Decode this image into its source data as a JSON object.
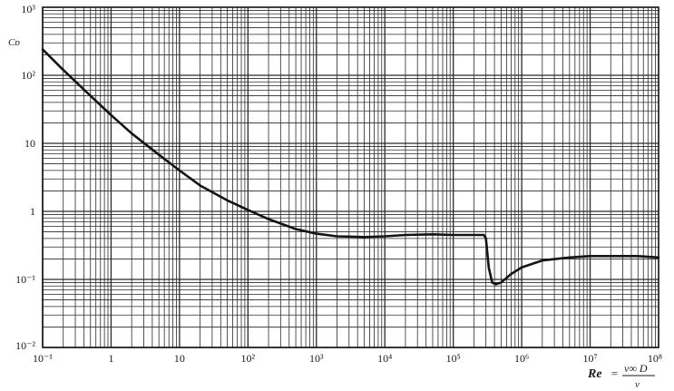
{
  "chart_data": {
    "type": "line",
    "title": "",
    "xscale": "log",
    "yscale": "log",
    "xlim": [
      0.1,
      100000000
    ],
    "ylim": [
      0.01,
      1000
    ],
    "grid": true,
    "ylabel": "Cᴅ",
    "xlabel": {
      "lhs": "Re",
      "eq": "=",
      "num": "v∞ D",
      "den": "ν"
    },
    "x_ticks": [
      {
        "value": 0.1,
        "label": "10⁻¹"
      },
      {
        "value": 1,
        "label": "1"
      },
      {
        "value": 10,
        "label": "10"
      },
      {
        "value": 100,
        "label": "10²"
      },
      {
        "value": 1000,
        "label": "10³"
      },
      {
        "value": 10000,
        "label": "10⁴"
      },
      {
        "value": 100000,
        "label": "10⁵"
      },
      {
        "value": 1000000,
        "label": "10⁶"
      },
      {
        "value": 10000000,
        "label": "10⁷"
      },
      {
        "value": 100000000,
        "label": "10⁸"
      }
    ],
    "y_ticks": [
      {
        "value": 0.01,
        "label": "10⁻²"
      },
      {
        "value": 0.1,
        "label": "10⁻¹"
      },
      {
        "value": 1,
        "label": "1"
      },
      {
        "value": 10,
        "label": "10"
      },
      {
        "value": 100,
        "label": "10²"
      },
      {
        "value": 1000,
        "label": "10³"
      }
    ],
    "series": [
      {
        "x": [
          0.1,
          0.2,
          0.5,
          1,
          2,
          5,
          10,
          20,
          50,
          100,
          200,
          500,
          1000,
          2000,
          5000,
          10000,
          20000,
          50000,
          100000,
          200000,
          280000,
          300000,
          330000,
          370000,
          420000,
          500000,
          700000,
          1000000,
          2000000,
          5000000,
          10000000,
          20000000,
          50000000,
          100000000
        ],
        "y": [
          240,
          120,
          50,
          26,
          14,
          6.8,
          4.0,
          2.4,
          1.45,
          1.05,
          0.77,
          0.55,
          0.47,
          0.43,
          0.42,
          0.43,
          0.45,
          0.46,
          0.45,
          0.45,
          0.45,
          0.4,
          0.15,
          0.09,
          0.085,
          0.09,
          0.12,
          0.15,
          0.19,
          0.21,
          0.22,
          0.22,
          0.22,
          0.21
        ]
      }
    ],
    "colors": {
      "line": "#141414",
      "grid": "#2a2a2a",
      "text": "#1a1a1a"
    }
  }
}
